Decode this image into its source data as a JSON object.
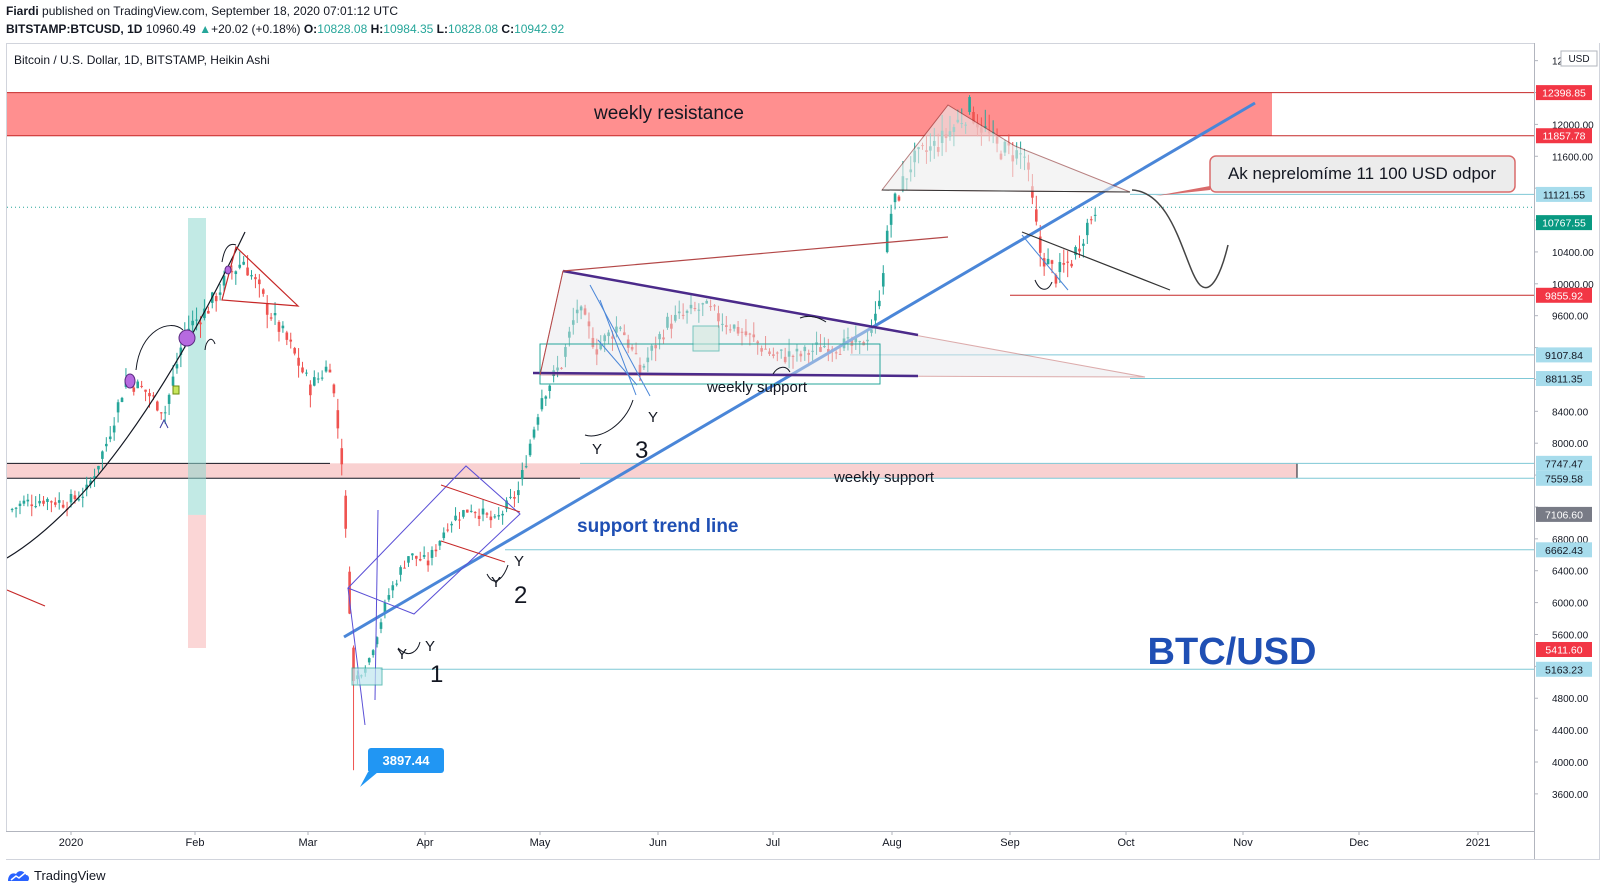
{
  "header": {
    "publisher": "Fiardi",
    "published_text": "published on TradingView.com, September 18, 2020 07:01:12 UTC",
    "symbol": "BITSTAMP:BTCUSD, 1D",
    "last": "10960.49",
    "change": "+20.02 (+0.18%)",
    "o_label": "O:",
    "o": "10828.08",
    "h_label": "H:",
    "h": "10984.35",
    "l_label": "L:",
    "l": "10828.08",
    "c_label": "C:",
    "c": "10942.92"
  },
  "legend_title": "Bitcoin / U.S. Dollar, 1D, BITSTAMP, Heikin Ashi",
  "currency": "USD",
  "footer_brand": "TradingView",
  "colors": {
    "up": "#26a69a",
    "down": "#ef5350",
    "trend": "#4a86d8",
    "resistance": "#ff7b7b",
    "support_zone": "#f8cccc"
  },
  "chart_data": {
    "type": "candlestick",
    "chart_type_label": "Heikin Ashi",
    "y_axis": {
      "scale": "linear",
      "range": [
        3400,
        12800
      ],
      "ticks": [
        3600,
        4000,
        4400,
        4800,
        5200,
        5600,
        6000,
        6400,
        6800,
        7200,
        7600,
        8000,
        8400,
        8800,
        9200,
        9600,
        10000,
        10400,
        10800,
        11200,
        11600,
        12000,
        12400,
        12800
      ]
    },
    "x_axis": {
      "labels": [
        "2020",
        "Feb",
        "Mar",
        "Apr",
        "May",
        "Jun",
        "Jul",
        "Aug",
        "Sep",
        "Oct",
        "Nov",
        "Dec",
        "2021"
      ]
    },
    "price_labels": [
      {
        "value": "12398.85",
        "style": "red"
      },
      {
        "value": "11857.78",
        "style": "red"
      },
      {
        "value": "11121.55",
        "style": "teal-light"
      },
      {
        "value": "10767.55",
        "style": "teal"
      },
      {
        "value": "9855.92",
        "style": "red"
      },
      {
        "value": "9107.84",
        "style": "teal-light"
      },
      {
        "value": "8811.35",
        "style": "teal-light"
      },
      {
        "value": "7747.47",
        "style": "teal-light"
      },
      {
        "value": "7559.58",
        "style": "teal-light"
      },
      {
        "value": "7106.60",
        "style": "gray"
      },
      {
        "value": "6662.43",
        "style": "teal-light"
      },
      {
        "value": "5411.60",
        "style": "red"
      },
      {
        "value": "5163.23",
        "style": "teal-light"
      }
    ],
    "low_callout": "3897.44",
    "annotations": {
      "weekly_resistance": "weekly resistance",
      "weekly_support_upper": "weekly support",
      "weekly_support_lower": "weekly support",
      "support_trend_line": "support trend line",
      "callout": "Ak neprelomíme 11 100 USD odpor",
      "pair": "BTC/USD",
      "wave_1": "1",
      "wave_2": "2",
      "wave_3": "3",
      "y_mark": "Y"
    },
    "series_path": [
      {
        "date": "2019-12-16",
        "close": 7150
      },
      {
        "date": "2019-12-20",
        "close": 7250
      },
      {
        "date": "2019-12-25",
        "close": 7300
      },
      {
        "date": "2019-12-31",
        "close": 7250
      },
      {
        "date": "2020-01-05",
        "close": 7400
      },
      {
        "date": "2020-01-10",
        "close": 8000
      },
      {
        "date": "2020-01-15",
        "close": 8800
      },
      {
        "date": "2020-01-20",
        "close": 8650
      },
      {
        "date": "2020-01-25",
        "close": 8400
      },
      {
        "date": "2020-01-30",
        "close": 9400
      },
      {
        "date": "2020-02-05",
        "close": 9700
      },
      {
        "date": "2020-02-10",
        "close": 10100
      },
      {
        "date": "2020-02-14",
        "close": 10300
      },
      {
        "date": "2020-02-20",
        "close": 9700
      },
      {
        "date": "2020-02-26",
        "close": 9200
      },
      {
        "date": "2020-03-02",
        "close": 8700
      },
      {
        "date": "2020-03-07",
        "close": 9000
      },
      {
        "date": "2020-03-10",
        "close": 7800
      },
      {
        "date": "2020-03-13",
        "close": 5000
      },
      {
        "date": "2020-03-17",
        "close": 5300
      },
      {
        "date": "2020-03-22",
        "close": 6100
      },
      {
        "date": "2020-03-27",
        "close": 6600
      },
      {
        "date": "2020-04-01",
        "close": 6500
      },
      {
        "date": "2020-04-06",
        "close": 7000
      },
      {
        "date": "2020-04-12",
        "close": 7200
      },
      {
        "date": "2020-04-18",
        "close": 7000
      },
      {
        "date": "2020-04-24",
        "close": 7400
      },
      {
        "date": "2020-04-30",
        "close": 8600
      },
      {
        "date": "2020-05-05",
        "close": 9000
      },
      {
        "date": "2020-05-09",
        "close": 9700
      },
      {
        "date": "2020-05-14",
        "close": 9200
      },
      {
        "date": "2020-05-20",
        "close": 9500
      },
      {
        "date": "2020-05-25",
        "close": 8900
      },
      {
        "date": "2020-06-01",
        "close": 9500
      },
      {
        "date": "2020-06-10",
        "close": 9700
      },
      {
        "date": "2020-06-20",
        "close": 9400
      },
      {
        "date": "2020-06-28",
        "close": 9100
      },
      {
        "date": "2020-07-05",
        "close": 9100
      },
      {
        "date": "2020-07-12",
        "close": 9250
      },
      {
        "date": "2020-07-20",
        "close": 9200
      },
      {
        "date": "2020-07-24",
        "close": 9550
      },
      {
        "date": "2020-07-28",
        "close": 10900
      },
      {
        "date": "2020-08-02",
        "close": 11500
      },
      {
        "date": "2020-08-10",
        "close": 11800
      },
      {
        "date": "2020-08-17",
        "close": 12200
      },
      {
        "date": "2020-08-24",
        "close": 11700
      },
      {
        "date": "2020-08-31",
        "close": 11600
      },
      {
        "date": "2020-09-04",
        "close": 10400
      },
      {
        "date": "2020-09-08",
        "close": 10100
      },
      {
        "date": "2020-09-12",
        "close": 10300
      },
      {
        "date": "2020-09-18",
        "close": 10960
      }
    ]
  }
}
